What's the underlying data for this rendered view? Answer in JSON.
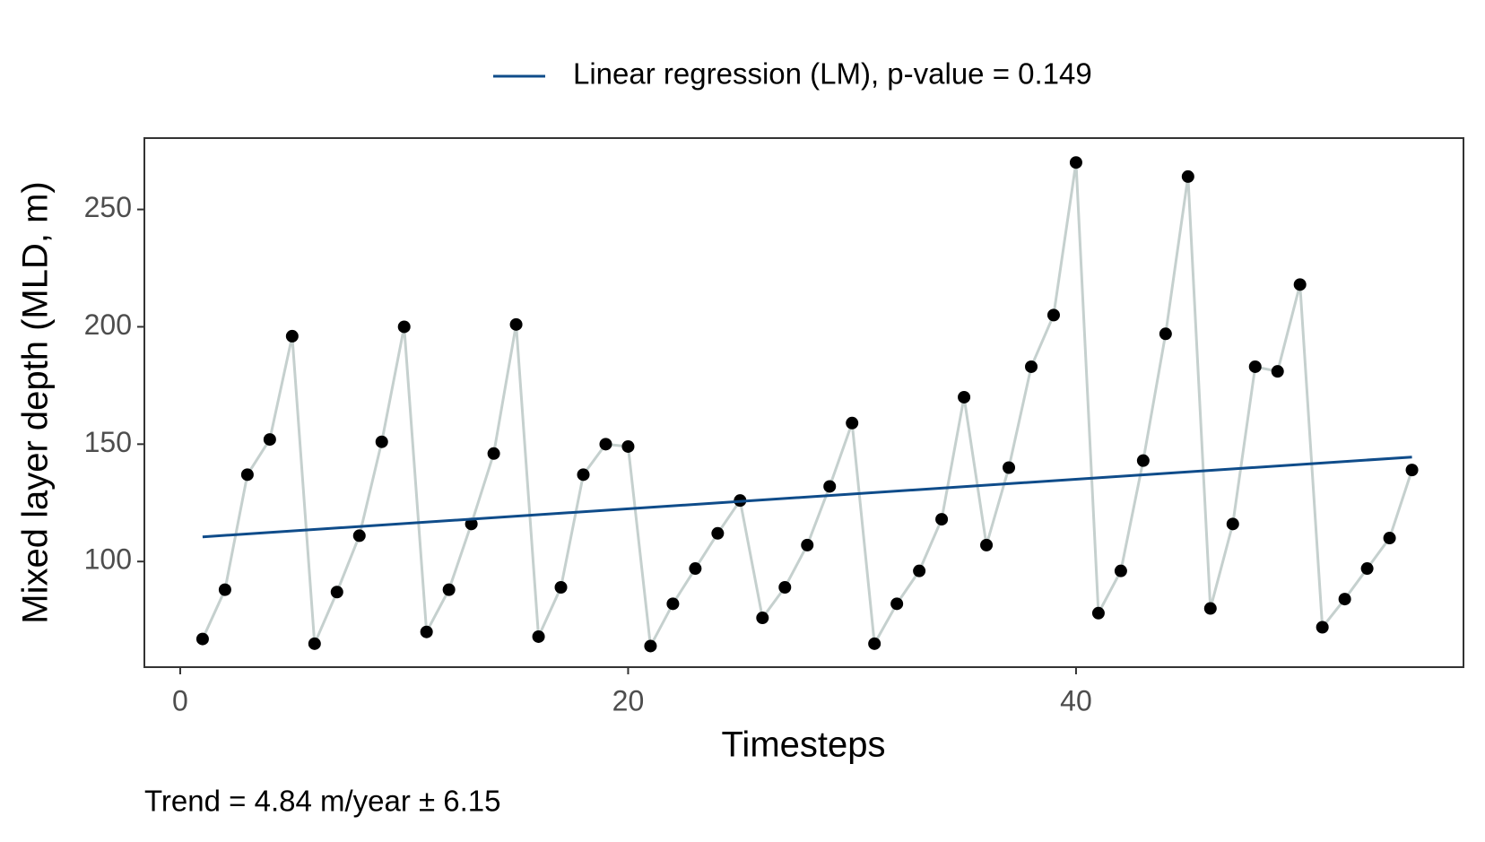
{
  "chart_data": {
    "type": "line",
    "x_label": "Timesteps",
    "y_label": "Mixed layer depth (MLD, m)",
    "annotation": "Trend = 4.84 m/year ± 6.15",
    "xlim": [
      -1.6,
      57.3
    ],
    "xticks": [
      0,
      20,
      40
    ],
    "ylim": [
      55,
      280.4
    ],
    "yticks": [
      100,
      150,
      200,
      250
    ],
    "legend": "top",
    "series": [
      {
        "color": "#000000",
        "line_color": "#c5d0ce",
        "markers": true,
        "x": [
          1,
          2,
          3,
          4,
          5,
          6,
          7,
          8,
          9,
          10,
          11,
          12,
          13,
          14,
          15,
          16,
          17,
          18,
          19,
          20,
          21,
          22,
          23,
          24,
          25,
          26,
          27,
          28,
          29,
          30,
          31,
          32,
          33,
          34,
          35,
          36,
          37,
          38,
          39,
          40,
          41,
          42,
          43,
          44,
          45,
          46,
          47,
          48,
          49,
          50,
          51,
          52,
          53,
          54,
          55
        ],
        "values": [
          67,
          88,
          137,
          152,
          196,
          65,
          87,
          111,
          151,
          200,
          70,
          88,
          116,
          146,
          201,
          68,
          89,
          137,
          150,
          149,
          64,
          82,
          97,
          112,
          126,
          76,
          89,
          107,
          132,
          159,
          65,
          82,
          96,
          118,
          170,
          107,
          140,
          183,
          205,
          270,
          78,
          96,
          143,
          197,
          264,
          80,
          116,
          183,
          181,
          218,
          72,
          84,
          97,
          110,
          139
        ]
      },
      {
        "name": "Linear regression (LM), p-value = 0.149",
        "color": "#0f4c8a",
        "markers": false,
        "x": [
          1,
          55
        ],
        "values": [
          110.5,
          144.5
        ]
      }
    ]
  }
}
